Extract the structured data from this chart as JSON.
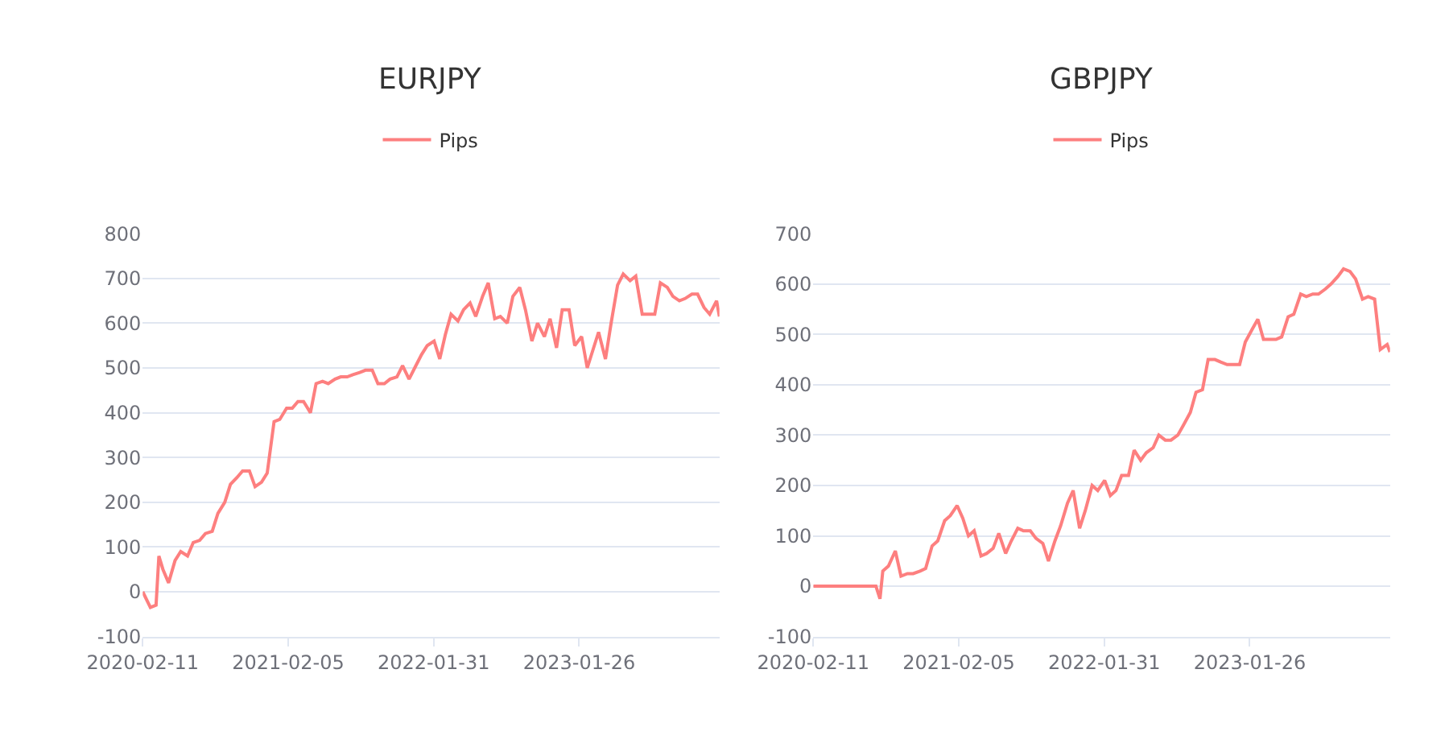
{
  "chart_data": [
    {
      "type": "line",
      "title": "EURJPY",
      "legend": "top",
      "grid": "y",
      "marker": "none",
      "line_style": "solid",
      "ylim": [
        -100,
        800
      ],
      "yticks": [
        -100,
        0,
        100,
        200,
        300,
        400,
        500,
        600,
        700,
        800
      ],
      "xlim": [
        "2020-02-11",
        "2024-01-08"
      ],
      "xticks": [
        {
          "value": "2020-02-11",
          "label": "2020-02-11"
        },
        {
          "value": "2021-02-05",
          "label": "2021-02-05"
        },
        {
          "value": "2022-01-31",
          "label": "2022-01-31"
        },
        {
          "value": "2023-01-26",
          "label": "2023-01-26"
        }
      ],
      "series": [
        {
          "name": "Pips",
          "color": "#fd7f7f",
          "x": [
            "2020-02-11",
            "2020-03-01",
            "2020-03-15",
            "2020-03-22",
            "2020-04-01",
            "2020-04-15",
            "2020-05-01",
            "2020-05-15",
            "2020-06-01",
            "2020-06-15",
            "2020-07-01",
            "2020-07-15",
            "2020-08-01",
            "2020-08-15",
            "2020-09-01",
            "2020-09-15",
            "2020-10-01",
            "2020-10-15",
            "2020-11-01",
            "2020-11-15",
            "2020-12-01",
            "2020-12-15",
            "2021-01-01",
            "2021-01-15",
            "2021-02-01",
            "2021-02-15",
            "2021-03-01",
            "2021-03-15",
            "2021-04-01",
            "2021-04-15",
            "2021-05-01",
            "2021-05-15",
            "2021-06-01",
            "2021-06-15",
            "2021-07-01",
            "2021-07-15",
            "2021-08-01",
            "2021-08-15",
            "2021-09-01",
            "2021-09-15",
            "2021-10-01",
            "2021-10-15",
            "2021-11-01",
            "2021-11-15",
            "2021-12-01",
            "2021-12-15",
            "2022-01-01",
            "2022-01-15",
            "2022-02-01",
            "2022-02-15",
            "2022-03-01",
            "2022-03-15",
            "2022-04-01",
            "2022-04-15",
            "2022-05-01",
            "2022-05-15",
            "2022-06-01",
            "2022-06-15",
            "2022-07-01",
            "2022-07-15",
            "2022-08-01",
            "2022-08-15",
            "2022-09-01",
            "2022-09-15",
            "2022-10-01",
            "2022-10-15",
            "2022-11-01",
            "2022-11-15",
            "2022-12-01",
            "2022-12-15",
            "2023-01-01",
            "2023-01-15",
            "2023-02-01",
            "2023-02-15",
            "2023-03-01",
            "2023-03-15",
            "2023-04-01",
            "2023-04-15",
            "2023-05-01",
            "2023-05-15",
            "2023-06-01",
            "2023-06-15",
            "2023-07-01",
            "2023-07-15",
            "2023-08-01",
            "2023-08-15",
            "2023-09-01",
            "2023-09-15",
            "2023-10-01",
            "2023-10-15",
            "2023-11-01",
            "2023-11-15",
            "2023-12-01",
            "2023-12-15",
            "2024-01-01",
            "2024-01-08"
          ],
          "values": [
            0,
            -35,
            -30,
            80,
            50,
            20,
            70,
            90,
            80,
            110,
            115,
            130,
            135,
            175,
            200,
            240,
            255,
            270,
            270,
            235,
            245,
            265,
            380,
            385,
            410,
            410,
            425,
            425,
            400,
            465,
            470,
            465,
            475,
            480,
            480,
            485,
            490,
            495,
            495,
            465,
            465,
            475,
            480,
            505,
            475,
            500,
            530,
            550,
            560,
            520,
            575,
            620,
            605,
            630,
            645,
            615,
            660,
            690,
            610,
            615,
            600,
            660,
            680,
            630,
            560,
            600,
            570,
            610,
            545,
            630,
            630,
            550,
            570,
            500,
            540,
            580,
            520,
            600,
            685,
            710,
            695,
            705,
            620,
            620,
            620,
            690,
            680,
            660,
            650,
            655,
            665,
            665,
            635,
            620,
            650,
            615
          ]
        }
      ]
    },
    {
      "type": "line",
      "title": "GBPJPY",
      "legend": "top",
      "grid": "y",
      "marker": "none",
      "line_style": "solid",
      "ylim": [
        -100,
        700
      ],
      "yticks": [
        -100,
        0,
        100,
        200,
        300,
        400,
        500,
        600,
        700
      ],
      "xlim": [
        "2020-02-11",
        "2024-01-08"
      ],
      "xticks": [
        {
          "value": "2020-02-11",
          "label": "2020-02-11"
        },
        {
          "value": "2021-02-05",
          "label": "2021-02-05"
        },
        {
          "value": "2022-01-31",
          "label": "2022-01-31"
        },
        {
          "value": "2023-01-26",
          "label": "2023-01-26"
        }
      ],
      "series": [
        {
          "name": "Pips",
          "color": "#fd7f7f",
          "x": [
            "2020-02-11",
            "2020-07-15",
            "2020-07-25",
            "2020-08-01",
            "2020-08-15",
            "2020-09-01",
            "2020-09-15",
            "2020-10-01",
            "2020-10-15",
            "2020-11-01",
            "2020-11-15",
            "2020-12-01",
            "2020-12-15",
            "2021-01-01",
            "2021-01-15",
            "2021-02-01",
            "2021-02-15",
            "2021-03-01",
            "2021-03-15",
            "2021-04-01",
            "2021-04-15",
            "2021-05-01",
            "2021-05-15",
            "2021-06-01",
            "2021-06-15",
            "2021-07-01",
            "2021-07-15",
            "2021-08-01",
            "2021-08-15",
            "2021-09-01",
            "2021-09-15",
            "2021-10-01",
            "2021-10-15",
            "2021-11-01",
            "2021-11-15",
            "2021-12-01",
            "2021-12-15",
            "2022-01-01",
            "2022-01-15",
            "2022-02-01",
            "2022-02-15",
            "2022-03-01",
            "2022-03-15",
            "2022-04-01",
            "2022-04-15",
            "2022-05-01",
            "2022-05-15",
            "2022-06-01",
            "2022-06-15",
            "2022-07-01",
            "2022-07-15",
            "2022-08-01",
            "2022-08-15",
            "2022-09-01",
            "2022-09-15",
            "2022-10-01",
            "2022-10-15",
            "2022-11-01",
            "2022-11-15",
            "2022-12-01",
            "2022-12-15",
            "2023-01-01",
            "2023-01-15",
            "2023-02-01",
            "2023-02-15",
            "2023-03-01",
            "2023-03-15",
            "2023-04-01",
            "2023-04-15",
            "2023-05-01",
            "2023-05-15",
            "2023-06-01",
            "2023-06-15",
            "2023-07-01",
            "2023-07-15",
            "2023-08-01",
            "2023-08-15",
            "2023-09-01",
            "2023-09-15",
            "2023-10-01",
            "2023-10-15",
            "2023-11-01",
            "2023-11-15",
            "2023-12-01",
            "2023-12-15",
            "2024-01-01",
            "2024-01-08"
          ],
          "values": [
            0,
            0,
            -25,
            30,
            40,
            70,
            20,
            25,
            25,
            30,
            35,
            80,
            90,
            130,
            140,
            160,
            135,
            100,
            110,
            60,
            65,
            75,
            105,
            65,
            90,
            115,
            110,
            110,
            95,
            85,
            50,
            90,
            120,
            165,
            190,
            115,
            150,
            200,
            190,
            210,
            180,
            190,
            220,
            220,
            270,
            250,
            265,
            275,
            300,
            290,
            290,
            300,
            320,
            345,
            385,
            390,
            450,
            450,
            445,
            440,
            440,
            440,
            485,
            510,
            530,
            490,
            490,
            490,
            495,
            535,
            540,
            580,
            575,
            580,
            580,
            590,
            600,
            615,
            630,
            625,
            610,
            570,
            575,
            570,
            470,
            480,
            465
          ]
        }
      ]
    }
  ]
}
